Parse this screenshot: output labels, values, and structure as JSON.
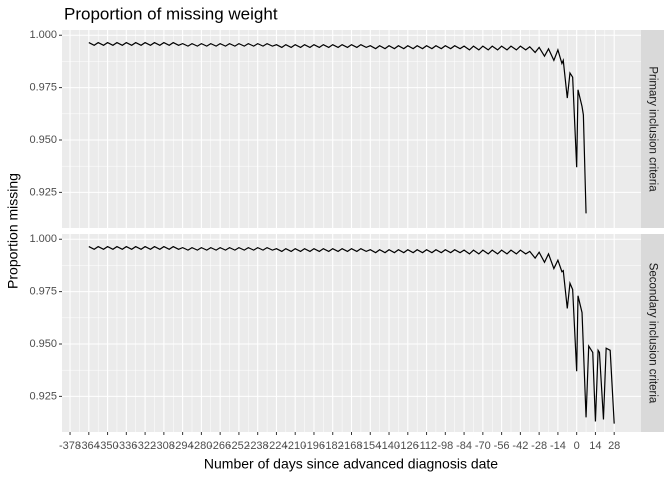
{
  "chart_data": {
    "type": "line",
    "title": "Proportion of missing weight",
    "x_label": "Number of days since advanced diagnosis date",
    "y_label": "Proportion missing",
    "xlim": [
      -384,
      48
    ],
    "xticks": [
      -378,
      -364,
      -350,
      -336,
      -322,
      -308,
      -294,
      -280,
      -266,
      -252,
      -238,
      -224,
      -210,
      -196,
      -182,
      -168,
      -154,
      -140,
      -126,
      -112,
      -98,
      -84,
      -70,
      -56,
      -42,
      -28,
      -14,
      0,
      14,
      28
    ],
    "ylim": [
      0.908,
      1.0025
    ],
    "yticks": [
      0.925,
      {
        "value": 0.95,
        "label": "0.950"
      },
      0.975,
      {
        "value": 1.0,
        "label": "1.000"
      }
    ],
    "grid": true,
    "color": "#000000",
    "facets": [
      {
        "name": "Primary inclusion criteria",
        "x": [
          -364,
          -360,
          -357,
          -353,
          -350,
          -346,
          -343,
          -339,
          -336,
          -332,
          -329,
          -325,
          -322,
          -318,
          -315,
          -311,
          -308,
          -304,
          -301,
          -297,
          -294,
          -290,
          -287,
          -283,
          -280,
          -276,
          -273,
          -269,
          -266,
          -262,
          -259,
          -255,
          -252,
          -248,
          -245,
          -241,
          -238,
          -234,
          -231,
          -227,
          -224,
          -220,
          -217,
          -213,
          -210,
          -206,
          -203,
          -199,
          -196,
          -192,
          -189,
          -185,
          -182,
          -178,
          -175,
          -171,
          -168,
          -164,
          -161,
          -157,
          -154,
          -150,
          -147,
          -143,
          -140,
          -136,
          -133,
          -129,
          -126,
          -122,
          -119,
          -115,
          -112,
          -108,
          -105,
          -101,
          -98,
          -94,
          -91,
          -87,
          -84,
          -80,
          -77,
          -73,
          -70,
          -66,
          -63,
          -59,
          -56,
          -52,
          -49,
          -45,
          -42,
          -38,
          -35,
          -31,
          -28,
          -24,
          -21,
          -17,
          -14,
          -11,
          -10,
          -7,
          -5,
          -3,
          0,
          1,
          4,
          5,
          7
        ],
        "values": [
          0.9965,
          0.9952,
          0.9965,
          0.9952,
          0.9965,
          0.9952,
          0.9965,
          0.9952,
          0.9965,
          0.9952,
          0.9965,
          0.9952,
          0.9965,
          0.9952,
          0.9965,
          0.9952,
          0.9965,
          0.9952,
          0.9965,
          0.9952,
          0.996,
          0.9948,
          0.996,
          0.9948,
          0.996,
          0.9948,
          0.996,
          0.9948,
          0.996,
          0.9948,
          0.996,
          0.9948,
          0.996,
          0.9948,
          0.996,
          0.9948,
          0.996,
          0.9948,
          0.996,
          0.9948,
          0.9955,
          0.9942,
          0.9955,
          0.9942,
          0.9955,
          0.9942,
          0.9955,
          0.9942,
          0.9955,
          0.9942,
          0.9955,
          0.9942,
          0.9955,
          0.9942,
          0.9955,
          0.9942,
          0.9955,
          0.9942,
          0.9955,
          0.9942,
          0.995,
          0.9936,
          0.995,
          0.9936,
          0.995,
          0.9936,
          0.995,
          0.9936,
          0.995,
          0.9936,
          0.995,
          0.9936,
          0.995,
          0.9936,
          0.995,
          0.9936,
          0.995,
          0.9936,
          0.995,
          0.9936,
          0.9948,
          0.993,
          0.9948,
          0.993,
          0.9948,
          0.993,
          0.9948,
          0.993,
          0.9948,
          0.993,
          0.9948,
          0.993,
          0.9948,
          0.993,
          0.9945,
          0.9918,
          0.9942,
          0.99,
          0.9935,
          0.988,
          0.993,
          0.9865,
          0.988,
          0.97,
          0.982,
          0.98,
          0.937,
          0.974,
          0.966,
          0.962,
          0.915
        ]
      },
      {
        "name": "Secondary inclusion criteria",
        "x": [
          -364,
          -360,
          -357,
          -353,
          -350,
          -346,
          -343,
          -339,
          -336,
          -332,
          -329,
          -325,
          -322,
          -318,
          -315,
          -311,
          -308,
          -304,
          -301,
          -297,
          -294,
          -290,
          -287,
          -283,
          -280,
          -276,
          -273,
          -269,
          -266,
          -262,
          -259,
          -255,
          -252,
          -248,
          -245,
          -241,
          -238,
          -234,
          -231,
          -227,
          -224,
          -220,
          -217,
          -213,
          -210,
          -206,
          -203,
          -199,
          -196,
          -192,
          -189,
          -185,
          -182,
          -178,
          -175,
          -171,
          -168,
          -164,
          -161,
          -157,
          -154,
          -150,
          -147,
          -143,
          -140,
          -136,
          -133,
          -129,
          -126,
          -122,
          -119,
          -115,
          -112,
          -108,
          -105,
          -101,
          -98,
          -94,
          -91,
          -87,
          -84,
          -80,
          -77,
          -73,
          -70,
          -66,
          -63,
          -59,
          -56,
          -52,
          -49,
          -45,
          -42,
          -38,
          -35,
          -31,
          -28,
          -24,
          -21,
          -17,
          -14,
          -11,
          -10,
          -7,
          -5,
          -3,
          0,
          1,
          4,
          7,
          9,
          12,
          14,
          16,
          17,
          20,
          22,
          25,
          28
        ],
        "values": [
          0.9965,
          0.9952,
          0.9965,
          0.9952,
          0.9965,
          0.9952,
          0.9965,
          0.9952,
          0.9965,
          0.9952,
          0.9965,
          0.9952,
          0.9965,
          0.9952,
          0.9965,
          0.9952,
          0.9965,
          0.9952,
          0.9965,
          0.9952,
          0.996,
          0.9948,
          0.996,
          0.9948,
          0.996,
          0.9948,
          0.996,
          0.9948,
          0.996,
          0.9948,
          0.996,
          0.9948,
          0.996,
          0.9948,
          0.996,
          0.9948,
          0.996,
          0.9948,
          0.996,
          0.9948,
          0.9955,
          0.9942,
          0.9955,
          0.9942,
          0.9955,
          0.9942,
          0.9955,
          0.9942,
          0.9955,
          0.9942,
          0.9955,
          0.9942,
          0.9955,
          0.9942,
          0.9955,
          0.9942,
          0.9955,
          0.9942,
          0.9955,
          0.9942,
          0.995,
          0.9936,
          0.995,
          0.9936,
          0.995,
          0.9936,
          0.995,
          0.9936,
          0.995,
          0.9936,
          0.995,
          0.9936,
          0.995,
          0.9936,
          0.995,
          0.9936,
          0.995,
          0.9936,
          0.995,
          0.9936,
          0.9948,
          0.993,
          0.9948,
          0.993,
          0.9948,
          0.993,
          0.9948,
          0.993,
          0.9948,
          0.993,
          0.9948,
          0.993,
          0.9948,
          0.993,
          0.9942,
          0.991,
          0.9938,
          0.989,
          0.993,
          0.986,
          0.99,
          0.9845,
          0.985,
          0.967,
          0.979,
          0.976,
          0.937,
          0.973,
          0.965,
          0.915,
          0.949,
          0.946,
          0.913,
          0.947,
          0.946,
          0.914,
          0.948,
          0.947,
          0.912
        ]
      }
    ]
  }
}
